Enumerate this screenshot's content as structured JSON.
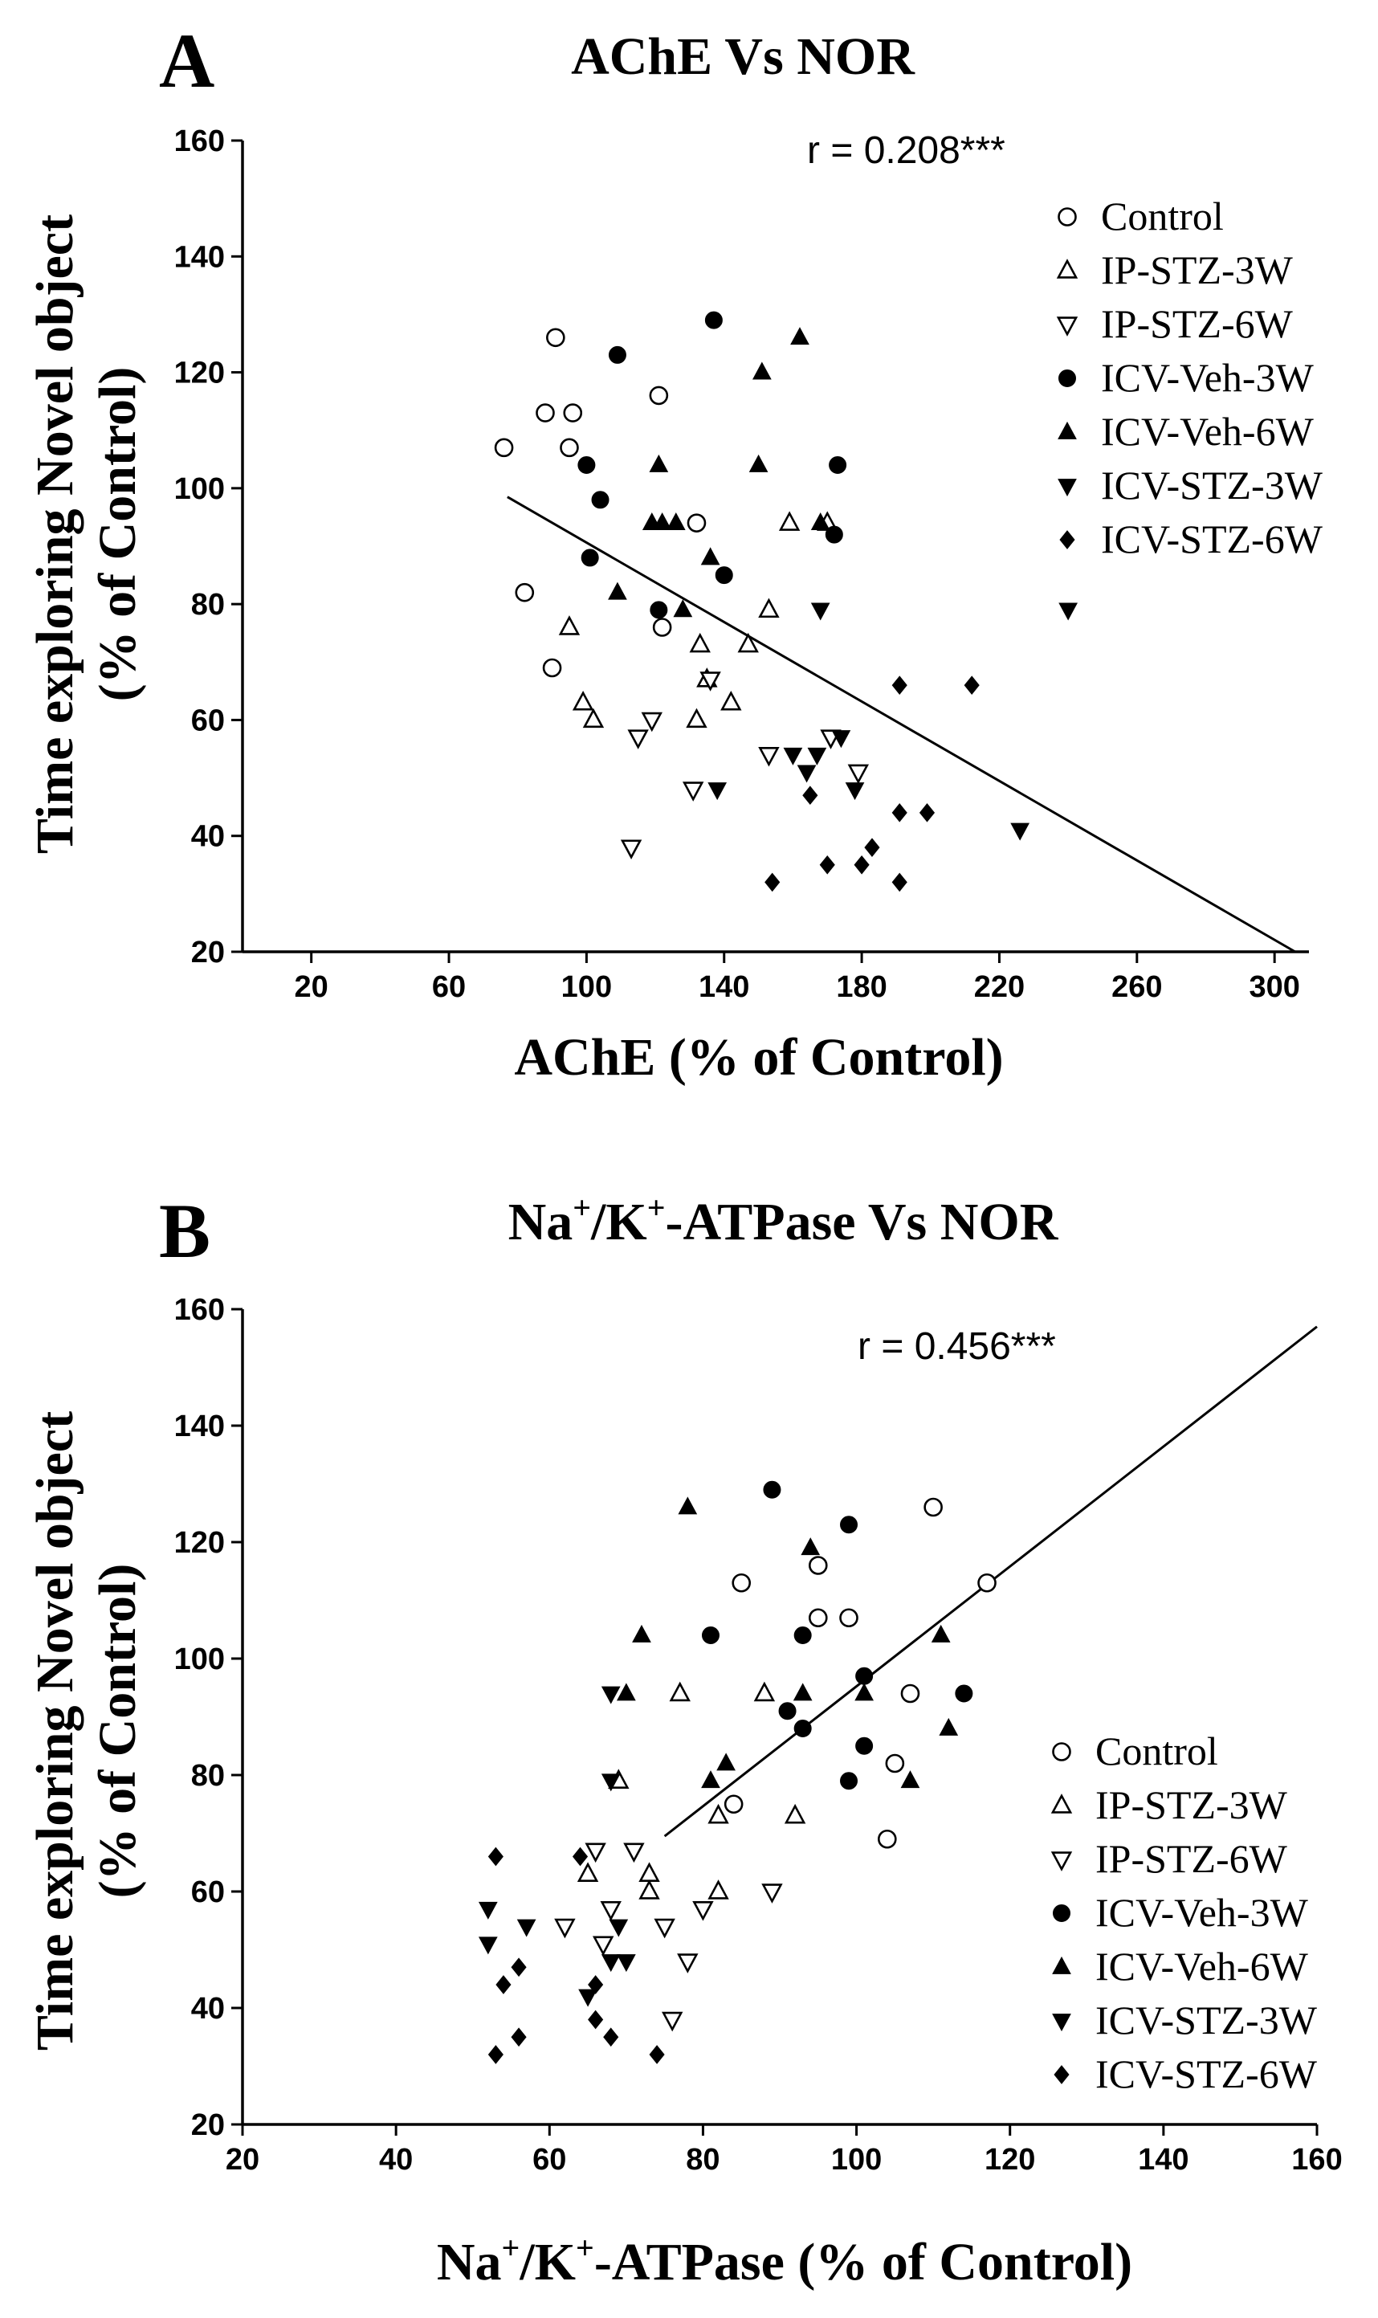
{
  "chart_data": [
    {
      "type": "scatter",
      "panel": "A",
      "title": "AChE Vs NOR",
      "xlabel": "AChE (% of Control)",
      "ylabel": [
        "Time exploring Novel object",
        "(% of Control)"
      ],
      "xlim": [
        0,
        310
      ],
      "ylim": [
        20,
        160
      ],
      "xticks": [
        20,
        60,
        100,
        140,
        180,
        220,
        260,
        300
      ],
      "yticks": [
        20,
        40,
        60,
        80,
        100,
        120,
        140,
        160
      ],
      "annotation": "r = 0.208***",
      "regression": [
        [
          77,
          98.5
        ],
        [
          306,
          20
        ]
      ],
      "legend_position": "top-right",
      "series": [
        {
          "name": "Control",
          "marker": "circle-open",
          "points": [
            [
              76,
              107
            ],
            [
              82,
              82
            ],
            [
              88,
              113
            ],
            [
              90,
              69
            ],
            [
              91,
              126
            ],
            [
              95,
              107
            ],
            [
              96,
              113
            ],
            [
              121,
              116
            ],
            [
              122,
              76
            ],
            [
              132,
              94
            ]
          ]
        },
        {
          "name": "IP-STZ-3W",
          "marker": "triangle-up-open",
          "points": [
            [
              95,
              76
            ],
            [
              99,
              63
            ],
            [
              102,
              60
            ],
            [
              132,
              60
            ],
            [
              133,
              73
            ],
            [
              135,
              67
            ],
            [
              142,
              63
            ],
            [
              147,
              73
            ],
            [
              153,
              79
            ],
            [
              159,
              94
            ],
            [
              170,
              94
            ]
          ]
        },
        {
          "name": "IP-STZ-6W",
          "marker": "triangle-down-open",
          "points": [
            [
              113,
              38
            ],
            [
              115,
              57
            ],
            [
              119,
              60
            ],
            [
              131,
              48
            ],
            [
              136,
              67
            ],
            [
              153,
              54
            ],
            [
              171,
              57
            ],
            [
              179,
              51
            ]
          ]
        },
        {
          "name": "ICV-Veh-3W",
          "marker": "circle-filled",
          "points": [
            [
              101,
              88
            ],
            [
              100,
              104
            ],
            [
              104,
              98
            ],
            [
              109,
              123
            ],
            [
              121,
              79
            ],
            [
              137,
              129
            ],
            [
              140,
              85
            ],
            [
              172,
              92
            ],
            [
              173,
              104
            ]
          ]
        },
        {
          "name": "ICV-Veh-6W",
          "marker": "triangle-up-filled",
          "points": [
            [
              109,
              82
            ],
            [
              119,
              94
            ],
            [
              121,
              104
            ],
            [
              122,
              94
            ],
            [
              126,
              94
            ],
            [
              128,
              79
            ],
            [
              136,
              88
            ],
            [
              150,
              104
            ],
            [
              151,
              120
            ],
            [
              162,
              126
            ],
            [
              168,
              94
            ]
          ]
        },
        {
          "name": "ICV-STZ-3W",
          "marker": "triangle-down-filled",
          "points": [
            [
              138,
              48
            ],
            [
              160,
              54
            ],
            [
              164,
              51
            ],
            [
              167,
              54
            ],
            [
              168,
              79
            ],
            [
              174,
              57
            ],
            [
              178,
              48
            ],
            [
              226,
              41
            ],
            [
              240,
              79
            ]
          ]
        },
        {
          "name": "ICV-STZ-6W",
          "marker": "diamond-filled",
          "points": [
            [
              154,
              32
            ],
            [
              165,
              47
            ],
            [
              170,
              35
            ],
            [
              180,
              35
            ],
            [
              183,
              38
            ],
            [
              191,
              32
            ],
            [
              191,
              44
            ],
            [
              191,
              66
            ],
            [
              199,
              44
            ],
            [
              212,
              66
            ]
          ]
        }
      ]
    },
    {
      "type": "scatter",
      "panel": "B",
      "title": "Na+/K+-ATPase Vs NOR",
      "title_parts": {
        "a": "Na",
        "s1": "+",
        "b": "/K",
        "s2": "+",
        "c": "-ATPase Vs NOR"
      },
      "xlabel": "Na+/K+-ATPase (% of Control)",
      "xlabel_parts": {
        "a": "Na",
        "s1": "+",
        "b": "/K",
        "s2": "+",
        "c": "-ATPase (% of Control)"
      },
      "ylabel": [
        "Time exploring Novel object",
        "(% of Control)"
      ],
      "xlim": [
        20,
        160
      ],
      "ylim": [
        20,
        160
      ],
      "xticks": [
        20,
        40,
        60,
        80,
        100,
        120,
        140,
        160
      ],
      "yticks": [
        20,
        40,
        60,
        80,
        100,
        120,
        140,
        160
      ],
      "annotation": "r = 0.456***",
      "regression": [
        [
          75,
          69.5
        ],
        [
          160,
          157
        ]
      ],
      "legend_position": "bottom-right",
      "series": [
        {
          "name": "Control",
          "marker": "circle-open",
          "points": [
            [
              84,
              75
            ],
            [
              85,
              113
            ],
            [
              95,
              116
            ],
            [
              95,
              107
            ],
            [
              99,
              107
            ],
            [
              104,
              69
            ],
            [
              105,
              82
            ],
            [
              107,
              94
            ],
            [
              110,
              126
            ],
            [
              117,
              113
            ]
          ]
        },
        {
          "name": "IP-STZ-3W",
          "marker": "triangle-up-open",
          "points": [
            [
              65,
              63
            ],
            [
              69,
              79
            ],
            [
              73,
              63
            ],
            [
              73,
              60
            ],
            [
              77,
              94
            ],
            [
              82,
              73
            ],
            [
              82,
              60
            ],
            [
              88,
              94
            ],
            [
              92,
              73
            ]
          ]
        },
        {
          "name": "IP-STZ-6W",
          "marker": "triangle-down-open",
          "points": [
            [
              62,
              54
            ],
            [
              66,
              67
            ],
            [
              67,
              51
            ],
            [
              68,
              57
            ],
            [
              71,
              67
            ],
            [
              75,
              54
            ],
            [
              76,
              38
            ],
            [
              78,
              48
            ],
            [
              80,
              57
            ],
            [
              89,
              60
            ]
          ]
        },
        {
          "name": "ICV-Veh-3W",
          "marker": "circle-filled",
          "points": [
            [
              81,
              104
            ],
            [
              89,
              129
            ],
            [
              91,
              91
            ],
            [
              93,
              88
            ],
            [
              93,
              104
            ],
            [
              99,
              79
            ],
            [
              99,
              123
            ],
            [
              101,
              97
            ],
            [
              101,
              85
            ],
            [
              114,
              94
            ]
          ]
        },
        {
          "name": "ICV-Veh-6W",
          "marker": "triangle-up-filled",
          "points": [
            [
              70,
              94
            ],
            [
              72,
              104
            ],
            [
              78,
              126
            ],
            [
              81,
              79
            ],
            [
              83,
              82
            ],
            [
              93,
              94
            ],
            [
              94,
              119
            ],
            [
              101,
              94
            ],
            [
              107,
              79
            ],
            [
              111,
              104
            ],
            [
              112,
              88
            ]
          ]
        },
        {
          "name": "ICV-STZ-3W",
          "marker": "triangle-down-filled",
          "points": [
            [
              52,
              57
            ],
            [
              52,
              51
            ],
            [
              57,
              54
            ],
            [
              65,
              42
            ],
            [
              68,
              48
            ],
            [
              68,
              79
            ],
            [
              68,
              94
            ],
            [
              69,
              54
            ],
            [
              70,
              48
            ]
          ]
        },
        {
          "name": "ICV-STZ-6W",
          "marker": "diamond-filled",
          "points": [
            [
              53,
              32
            ],
            [
              53,
              66
            ],
            [
              54,
              44
            ],
            [
              56,
              47
            ],
            [
              56,
              35
            ],
            [
              64,
              66
            ],
            [
              66,
              44
            ],
            [
              66,
              38
            ],
            [
              68,
              35
            ],
            [
              74,
              32
            ]
          ]
        }
      ]
    }
  ]
}
